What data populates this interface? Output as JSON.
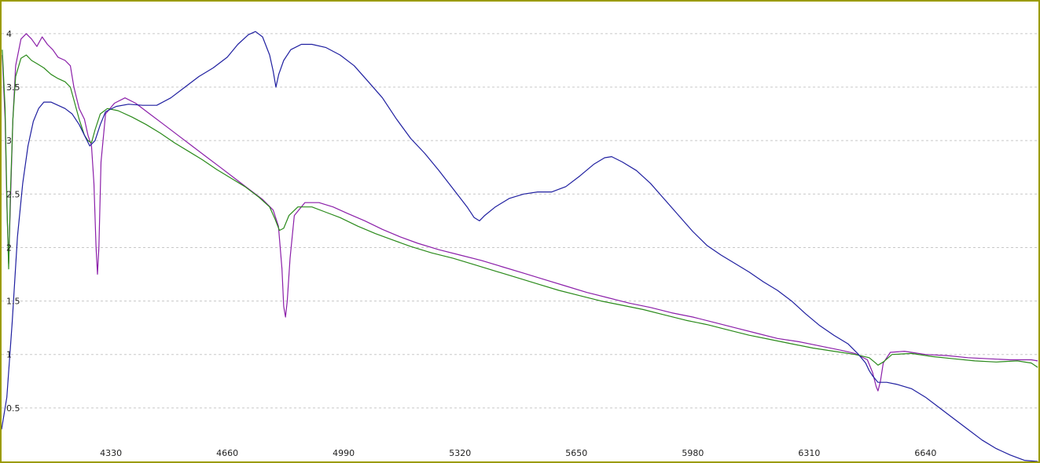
{
  "chart_data": {
    "type": "line",
    "title": "",
    "xlabel": "",
    "ylabel": "",
    "xlim": [
      4020,
      6960
    ],
    "ylim": [
      0,
      4.3
    ],
    "grid": true,
    "x_ticks": [
      "4330",
      "4660",
      "4990",
      "5320",
      "5650",
      "5980",
      "6310",
      "6640"
    ],
    "y_ticks": [
      "0.5",
      "1",
      "1.5",
      "2",
      "2.5",
      "3",
      "3.5",
      "4"
    ],
    "colors": {
      "frame": "#9b9b00",
      "grid": "#c8c8c8",
      "series_1": "#8b1fa9",
      "series_2": "#2a8a1a",
      "series_3": "#1f1fa0"
    },
    "series": [
      {
        "color": "#8b1fa9",
        "points": [
          [
            4022,
            3.8
          ],
          [
            4030,
            3.2
          ],
          [
            4035,
            2.4
          ],
          [
            4040,
            1.85
          ],
          [
            4045,
            2.4
          ],
          [
            4052,
            3.2
          ],
          [
            4060,
            3.7
          ],
          [
            4075,
            3.95
          ],
          [
            4090,
            4.0
          ],
          [
            4105,
            3.95
          ],
          [
            4120,
            3.88
          ],
          [
            4135,
            3.97
          ],
          [
            4150,
            3.9
          ],
          [
            4165,
            3.85
          ],
          [
            4180,
            3.78
          ],
          [
            4200,
            3.75
          ],
          [
            4215,
            3.7
          ],
          [
            4225,
            3.5
          ],
          [
            4240,
            3.3
          ],
          [
            4255,
            3.2
          ],
          [
            4265,
            3.05
          ],
          [
            4275,
            2.95
          ],
          [
            4282,
            2.6
          ],
          [
            4288,
            2.0
          ],
          [
            4292,
            1.75
          ],
          [
            4296,
            2.0
          ],
          [
            4302,
            2.8
          ],
          [
            4315,
            3.25
          ],
          [
            4340,
            3.35
          ],
          [
            4370,
            3.4
          ],
          [
            4400,
            3.35
          ],
          [
            4440,
            3.25
          ],
          [
            4480,
            3.15
          ],
          [
            4520,
            3.05
          ],
          [
            4560,
            2.95
          ],
          [
            4600,
            2.85
          ],
          [
            4640,
            2.75
          ],
          [
            4680,
            2.65
          ],
          [
            4720,
            2.55
          ],
          [
            4760,
            2.45
          ],
          [
            4790,
            2.35
          ],
          [
            4805,
            2.2
          ],
          [
            4815,
            1.8
          ],
          [
            4820,
            1.45
          ],
          [
            4825,
            1.35
          ],
          [
            4830,
            1.5
          ],
          [
            4838,
            1.9
          ],
          [
            4850,
            2.3
          ],
          [
            4880,
            2.42
          ],
          [
            4920,
            2.42
          ],
          [
            4960,
            2.38
          ],
          [
            5000,
            2.32
          ],
          [
            5050,
            2.25
          ],
          [
            5100,
            2.17
          ],
          [
            5150,
            2.1
          ],
          [
            5200,
            2.04
          ],
          [
            5260,
            1.98
          ],
          [
            5320,
            1.93
          ],
          [
            5380,
            1.88
          ],
          [
            5440,
            1.82
          ],
          [
            5500,
            1.76
          ],
          [
            5560,
            1.7
          ],
          [
            5620,
            1.64
          ],
          [
            5680,
            1.58
          ],
          [
            5740,
            1.53
          ],
          [
            5800,
            1.48
          ],
          [
            5860,
            1.44
          ],
          [
            5920,
            1.39
          ],
          [
            5980,
            1.35
          ],
          [
            6040,
            1.3
          ],
          [
            6100,
            1.25
          ],
          [
            6160,
            1.2
          ],
          [
            6220,
            1.15
          ],
          [
            6280,
            1.12
          ],
          [
            6340,
            1.08
          ],
          [
            6400,
            1.04
          ],
          [
            6440,
            1.01
          ],
          [
            6475,
            0.95
          ],
          [
            6490,
            0.83
          ],
          [
            6500,
            0.7
          ],
          [
            6505,
            0.66
          ],
          [
            6512,
            0.75
          ],
          [
            6520,
            0.92
          ],
          [
            6540,
            1.02
          ],
          [
            6580,
            1.03
          ],
          [
            6640,
            1.0
          ],
          [
            6700,
            0.99
          ],
          [
            6760,
            0.97
          ],
          [
            6820,
            0.96
          ],
          [
            6880,
            0.95
          ],
          [
            6940,
            0.95
          ],
          [
            6958,
            0.94
          ]
        ]
      },
      {
        "color": "#2a8a1a",
        "points": [
          [
            4022,
            3.85
          ],
          [
            4030,
            3.3
          ],
          [
            4036,
            2.3
          ],
          [
            4040,
            1.8
          ],
          [
            4045,
            2.5
          ],
          [
            4052,
            3.2
          ],
          [
            4060,
            3.6
          ],
          [
            4075,
            3.77
          ],
          [
            4090,
            3.8
          ],
          [
            4105,
            3.75
          ],
          [
            4120,
            3.72
          ],
          [
            4140,
            3.68
          ],
          [
            4160,
            3.62
          ],
          [
            4180,
            3.58
          ],
          [
            4200,
            3.55
          ],
          [
            4215,
            3.5
          ],
          [
            4225,
            3.38
          ],
          [
            4240,
            3.2
          ],
          [
            4255,
            3.05
          ],
          [
            4265,
            3.0
          ],
          [
            4275,
            2.98
          ],
          [
            4285,
            3.1
          ],
          [
            4300,
            3.25
          ],
          [
            4320,
            3.3
          ],
          [
            4350,
            3.28
          ],
          [
            4390,
            3.22
          ],
          [
            4430,
            3.15
          ],
          [
            4470,
            3.07
          ],
          [
            4510,
            2.98
          ],
          [
            4550,
            2.9
          ],
          [
            4590,
            2.82
          ],
          [
            4630,
            2.73
          ],
          [
            4670,
            2.65
          ],
          [
            4710,
            2.57
          ],
          [
            4750,
            2.47
          ],
          [
            4780,
            2.38
          ],
          [
            4795,
            2.27
          ],
          [
            4808,
            2.16
          ],
          [
            4820,
            2.18
          ],
          [
            4835,
            2.3
          ],
          [
            4860,
            2.38
          ],
          [
            4900,
            2.38
          ],
          [
            4940,
            2.33
          ],
          [
            4980,
            2.28
          ],
          [
            5030,
            2.2
          ],
          [
            5080,
            2.13
          ],
          [
            5130,
            2.07
          ],
          [
            5180,
            2.01
          ],
          [
            5240,
            1.95
          ],
          [
            5300,
            1.9
          ],
          [
            5360,
            1.84
          ],
          [
            5420,
            1.78
          ],
          [
            5480,
            1.72
          ],
          [
            5540,
            1.66
          ],
          [
            5600,
            1.6
          ],
          [
            5660,
            1.55
          ],
          [
            5720,
            1.5
          ],
          [
            5780,
            1.46
          ],
          [
            5840,
            1.42
          ],
          [
            5900,
            1.37
          ],
          [
            5960,
            1.32
          ],
          [
            6020,
            1.28
          ],
          [
            6080,
            1.23
          ],
          [
            6140,
            1.18
          ],
          [
            6200,
            1.14
          ],
          [
            6260,
            1.1
          ],
          [
            6320,
            1.06
          ],
          [
            6380,
            1.03
          ],
          [
            6440,
            1.0
          ],
          [
            6480,
            0.97
          ],
          [
            6495,
            0.93
          ],
          [
            6505,
            0.9
          ],
          [
            6520,
            0.93
          ],
          [
            6545,
            1.0
          ],
          [
            6600,
            1.01
          ],
          [
            6660,
            0.98
          ],
          [
            6720,
            0.96
          ],
          [
            6780,
            0.94
          ],
          [
            6840,
            0.93
          ],
          [
            6900,
            0.94
          ],
          [
            6940,
            0.92
          ],
          [
            6958,
            0.88
          ]
        ]
      },
      {
        "color": "#1f1fa0",
        "points": [
          [
            4020,
            0.3
          ],
          [
            4035,
            0.6
          ],
          [
            4050,
            1.3
          ],
          [
            4065,
            2.1
          ],
          [
            4080,
            2.6
          ],
          [
            4095,
            2.95
          ],
          [
            4110,
            3.18
          ],
          [
            4125,
            3.3
          ],
          [
            4140,
            3.36
          ],
          [
            4160,
            3.36
          ],
          [
            4180,
            3.33
          ],
          [
            4200,
            3.3
          ],
          [
            4220,
            3.25
          ],
          [
            4240,
            3.15
          ],
          [
            4255,
            3.05
          ],
          [
            4270,
            2.95
          ],
          [
            4285,
            3.0
          ],
          [
            4300,
            3.15
          ],
          [
            4315,
            3.27
          ],
          [
            4345,
            3.32
          ],
          [
            4380,
            3.34
          ],
          [
            4420,
            3.33
          ],
          [
            4460,
            3.33
          ],
          [
            4500,
            3.4
          ],
          [
            4540,
            3.5
          ],
          [
            4580,
            3.6
          ],
          [
            4620,
            3.68
          ],
          [
            4660,
            3.78
          ],
          [
            4690,
            3.9
          ],
          [
            4720,
            3.99
          ],
          [
            4740,
            4.02
          ],
          [
            4760,
            3.97
          ],
          [
            4780,
            3.8
          ],
          [
            4790,
            3.65
          ],
          [
            4798,
            3.5
          ],
          [
            4806,
            3.62
          ],
          [
            4820,
            3.75
          ],
          [
            4840,
            3.85
          ],
          [
            4870,
            3.9
          ],
          [
            4900,
            3.9
          ],
          [
            4940,
            3.87
          ],
          [
            4980,
            3.8
          ],
          [
            5020,
            3.7
          ],
          [
            5060,
            3.55
          ],
          [
            5100,
            3.4
          ],
          [
            5140,
            3.2
          ],
          [
            5180,
            3.02
          ],
          [
            5220,
            2.88
          ],
          [
            5260,
            2.72
          ],
          [
            5300,
            2.55
          ],
          [
            5340,
            2.38
          ],
          [
            5360,
            2.28
          ],
          [
            5375,
            2.25
          ],
          [
            5390,
            2.3
          ],
          [
            5420,
            2.38
          ],
          [
            5460,
            2.46
          ],
          [
            5500,
            2.5
          ],
          [
            5540,
            2.52
          ],
          [
            5580,
            2.52
          ],
          [
            5620,
            2.57
          ],
          [
            5660,
            2.67
          ],
          [
            5700,
            2.78
          ],
          [
            5730,
            2.84
          ],
          [
            5750,
            2.85
          ],
          [
            5780,
            2.8
          ],
          [
            5820,
            2.72
          ],
          [
            5860,
            2.6
          ],
          [
            5900,
            2.45
          ],
          [
            5940,
            2.3
          ],
          [
            5980,
            2.15
          ],
          [
            6020,
            2.02
          ],
          [
            6060,
            1.93
          ],
          [
            6100,
            1.85
          ],
          [
            6140,
            1.77
          ],
          [
            6180,
            1.68
          ],
          [
            6220,
            1.6
          ],
          [
            6260,
            1.5
          ],
          [
            6300,
            1.38
          ],
          [
            6340,
            1.27
          ],
          [
            6380,
            1.18
          ],
          [
            6420,
            1.1
          ],
          [
            6450,
            1.0
          ],
          [
            6470,
            0.92
          ],
          [
            6480,
            0.85
          ],
          [
            6490,
            0.8
          ],
          [
            6505,
            0.74
          ],
          [
            6530,
            0.74
          ],
          [
            6560,
            0.72
          ],
          [
            6600,
            0.68
          ],
          [
            6640,
            0.6
          ],
          [
            6680,
            0.5
          ],
          [
            6720,
            0.4
          ],
          [
            6760,
            0.3
          ],
          [
            6800,
            0.2
          ],
          [
            6840,
            0.12
          ],
          [
            6880,
            0.06
          ],
          [
            6920,
            0.01
          ],
          [
            6958,
            0.0
          ]
        ]
      }
    ]
  }
}
